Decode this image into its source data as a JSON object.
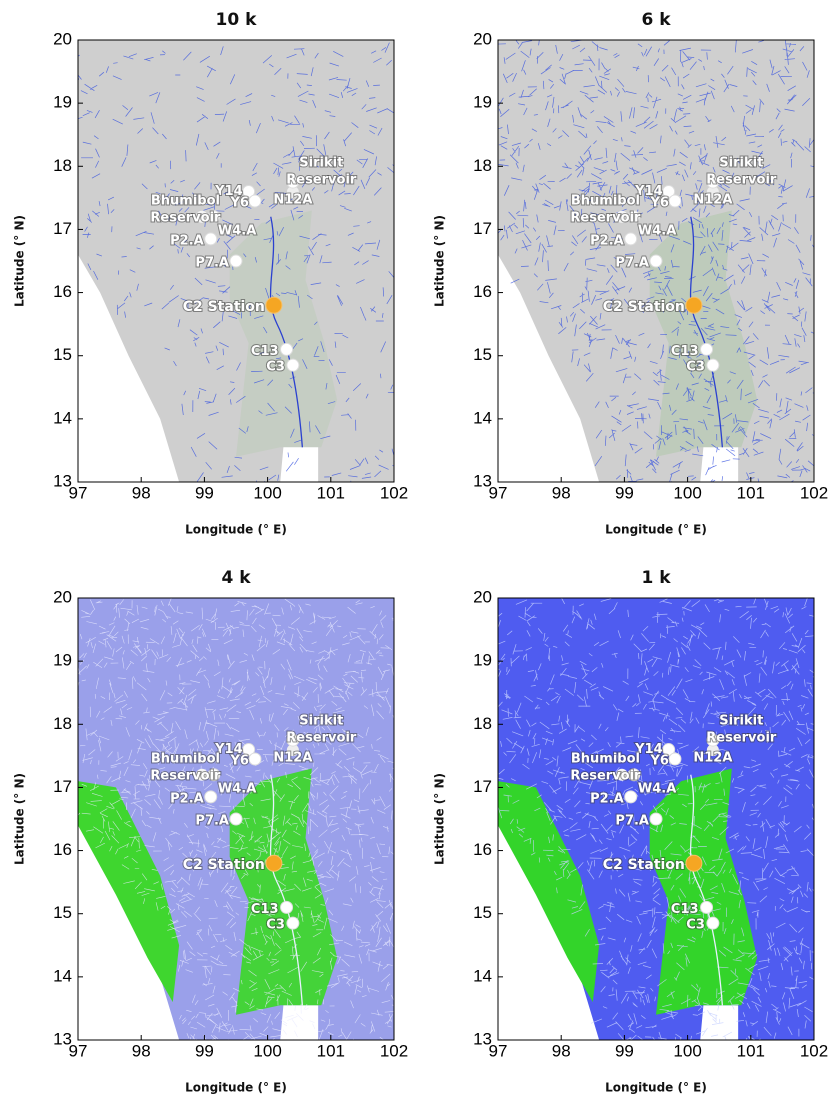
{
  "xlim": [
    97,
    102
  ],
  "ylim": [
    13,
    20
  ],
  "xticks": [
    97,
    98,
    99,
    100,
    101,
    102
  ],
  "yticks": [
    13,
    14,
    15,
    16,
    17,
    18,
    19,
    20
  ],
  "xlabel": "Longitude (° E)",
  "ylabel": "Latitude (° N)",
  "panels": [
    {
      "title": "10 k"
    },
    {
      "title": "6 k"
    },
    {
      "title": "4 k"
    },
    {
      "title": "1 k"
    }
  ],
  "reservoirs": [
    {
      "lines": [
        "Bhumibol",
        "Reservoir"
      ]
    },
    {
      "lines": [
        "Sirikit",
        "Reservoir"
      ]
    }
  ],
  "stations": [
    {
      "label": "Y14",
      "lon": 99.7,
      "lat": 17.6
    },
    {
      "label": "Y6",
      "lon": 99.8,
      "lat": 17.45
    },
    {
      "label": "N12A",
      "lon": 100.4,
      "lat": 17.75
    },
    {
      "label": "W4.A",
      "lon": 99.15,
      "lat": 17.2
    },
    {
      "label": "P2.A",
      "lon": 99.1,
      "lat": 16.85
    },
    {
      "label": "P7.A",
      "lon": 99.5,
      "lat": 16.5
    },
    {
      "label": "C2 Station",
      "lon": 100.1,
      "lat": 15.8
    },
    {
      "label": "C13",
      "lon": 100.3,
      "lat": 15.1
    },
    {
      "label": "C3",
      "lon": 100.4,
      "lat": 14.85
    }
  ]
}
